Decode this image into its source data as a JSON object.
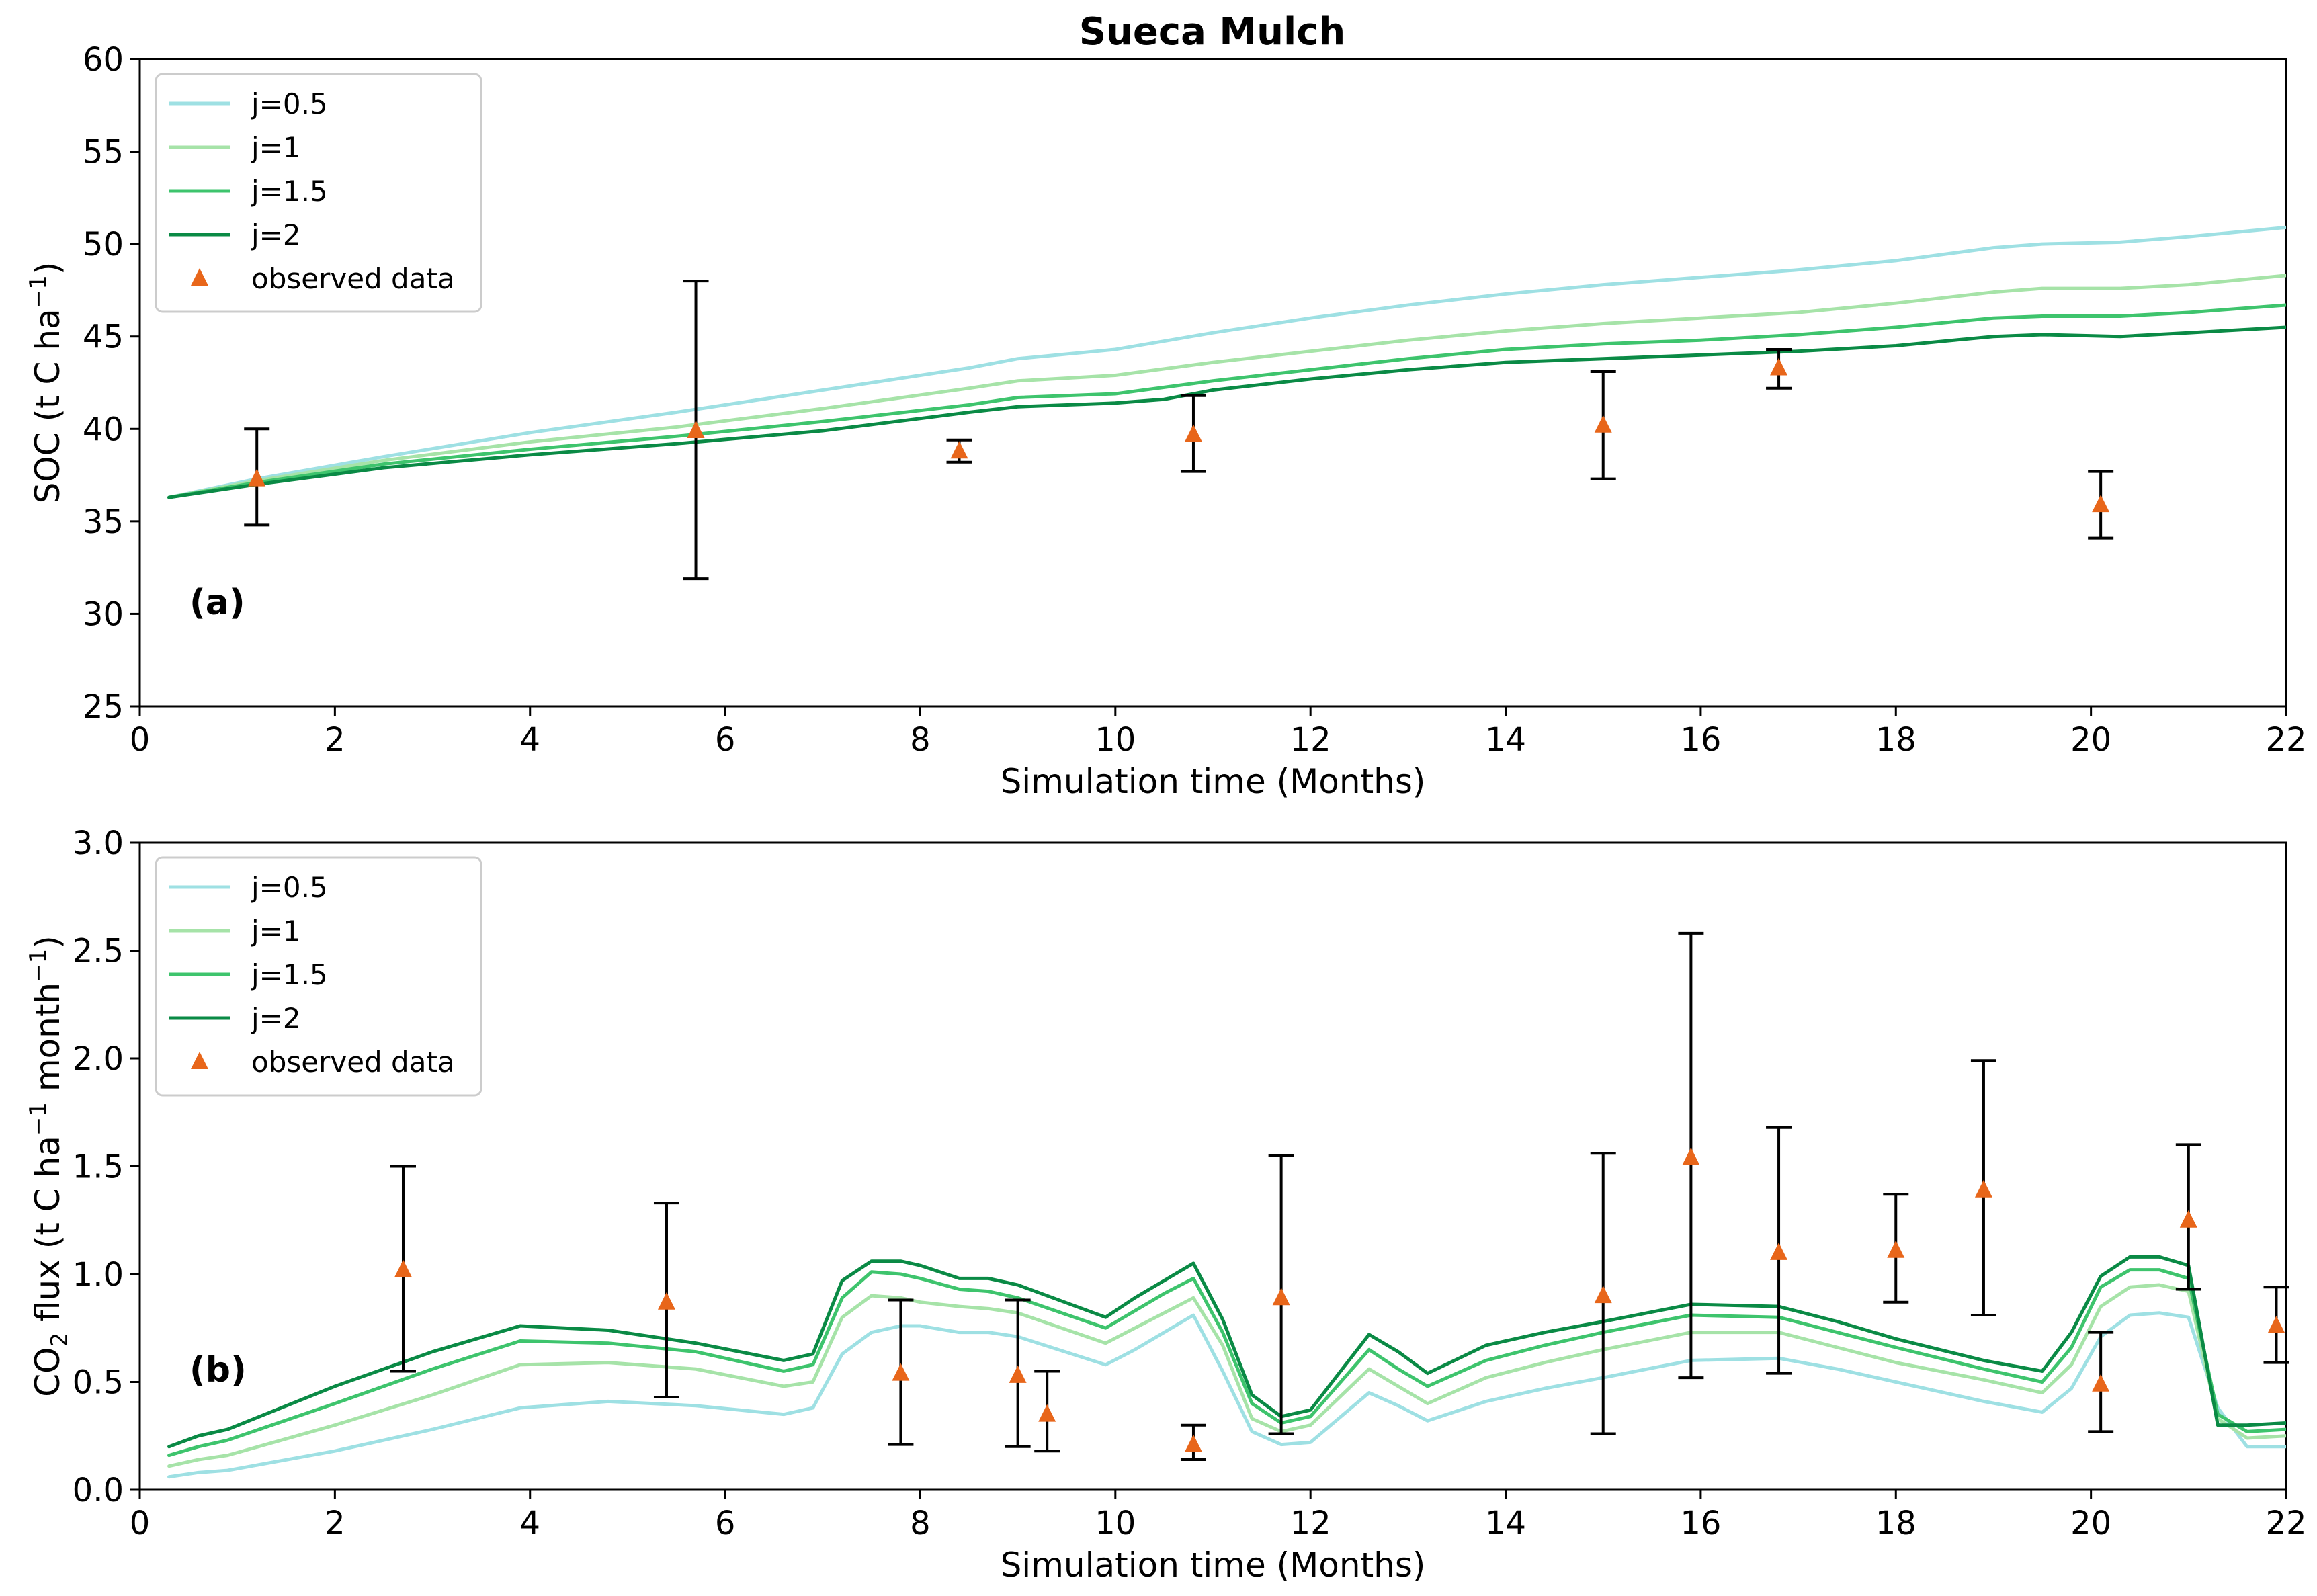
{
  "figure": {
    "title": "Sueca Mulch"
  },
  "chart_data": [
    {
      "type": "line",
      "panel_label": "(a)",
      "xlabel": "Simulation time (Months)",
      "ylabel": "SOC (t C ha",
      "ylabel_sup": "−1",
      "ylabel_end": ")",
      "xlim": [
        0,
        22
      ],
      "ylim": [
        25,
        60
      ],
      "xticks": [
        0,
        2,
        4,
        6,
        8,
        10,
        12,
        14,
        16,
        18,
        20,
        22
      ],
      "yticks": [
        25,
        30,
        35,
        40,
        45,
        50,
        55,
        60
      ],
      "legend_position": "top-left",
      "series": [
        {
          "name": "j=0.5",
          "color": "#9ee0e3",
          "x": [
            0.3,
            1.2,
            2.5,
            4,
            5.5,
            7,
            8.5,
            9,
            10,
            11,
            12,
            13,
            14,
            15,
            16,
            17,
            18,
            19,
            19.5,
            20.3,
            21,
            22
          ],
          "y": [
            36.3,
            37.3,
            38.5,
            39.8,
            40.9,
            42.1,
            43.3,
            43.8,
            44.3,
            45.2,
            46.0,
            46.7,
            47.3,
            47.8,
            48.2,
            48.6,
            49.1,
            49.8,
            50.0,
            50.1,
            50.4,
            50.9
          ]
        },
        {
          "name": "j=1",
          "color": "#a6e3a8",
          "x": [
            0.3,
            1.2,
            2.5,
            4,
            5.5,
            7,
            8.5,
            9,
            10,
            11,
            12,
            13,
            14,
            15,
            16,
            17,
            18,
            19,
            19.5,
            20.3,
            21,
            22
          ],
          "y": [
            36.3,
            37.2,
            38.3,
            39.3,
            40.1,
            41.1,
            42.2,
            42.6,
            42.9,
            43.6,
            44.2,
            44.8,
            45.3,
            45.7,
            46.0,
            46.3,
            46.8,
            47.4,
            47.6,
            47.6,
            47.8,
            48.3
          ]
        },
        {
          "name": "j=1.5",
          "color": "#3ec46d",
          "x": [
            0.3,
            1.2,
            2.5,
            4,
            5.5,
            7,
            8.5,
            9,
            10,
            11,
            12,
            13,
            14,
            15,
            16,
            17,
            18,
            19,
            19.5,
            20.3,
            21,
            22
          ],
          "y": [
            36.3,
            37.1,
            38.1,
            38.9,
            39.6,
            40.4,
            41.3,
            41.7,
            41.9,
            42.6,
            43.2,
            43.8,
            44.3,
            44.6,
            44.8,
            45.1,
            45.5,
            46.0,
            46.1,
            46.1,
            46.3,
            46.7
          ]
        },
        {
          "name": "j=2",
          "color": "#0a8a45",
          "x": [
            0.3,
            1.2,
            2.5,
            4,
            5.5,
            7,
            8.5,
            9,
            10,
            10.5,
            11,
            12,
            13,
            14,
            15,
            16,
            17,
            18,
            19,
            19.5,
            20.3,
            21,
            22
          ],
          "y": [
            36.3,
            37.0,
            37.9,
            38.6,
            39.2,
            39.9,
            40.9,
            41.2,
            41.4,
            41.6,
            42.1,
            42.7,
            43.2,
            43.6,
            43.8,
            44.0,
            44.2,
            44.5,
            45.0,
            45.1,
            45.0,
            45.2,
            45.5
          ]
        }
      ],
      "observed": {
        "name": "observed data",
        "color": "#e8661a",
        "x": [
          1.2,
          5.7,
          8.4,
          10.8,
          15.0,
          16.8,
          20.1
        ],
        "y": [
          37.3,
          39.9,
          38.8,
          39.7,
          40.2,
          43.3,
          35.9
        ],
        "err_low": [
          34.8,
          31.9,
          38.2,
          37.7,
          37.3,
          42.2,
          34.1
        ],
        "err_high": [
          40.0,
          48.0,
          39.4,
          41.8,
          43.1,
          44.3,
          37.7
        ]
      }
    },
    {
      "type": "line",
      "panel_label": "(b)",
      "xlabel": "Simulation time (Months)",
      "ylabel_pre": "CO",
      "ylabel_sub": "2",
      "ylabel": " flux (t C ha",
      "ylabel_sup": "−1",
      "ylabel_end": " month",
      "ylabel_sup2": "−1",
      "ylabel_end2": ")",
      "xlim": [
        0,
        22
      ],
      "ylim": [
        0,
        3.0
      ],
      "xticks": [
        0,
        2,
        4,
        6,
        8,
        10,
        12,
        14,
        16,
        18,
        20,
        22
      ],
      "yticks": [
        "0.0",
        "0.5",
        "1.0",
        "1.5",
        "2.0",
        "2.5",
        "3.0"
      ],
      "legend_position": "top-left",
      "x": [
        0.3,
        0.6,
        0.9,
        2.0,
        3.0,
        3.9,
        4.8,
        5.7,
        6.6,
        6.9,
        7.2,
        7.5,
        7.8,
        8.0,
        8.4,
        8.7,
        9.0,
        9.9,
        10.2,
        10.5,
        10.8,
        11.1,
        11.4,
        11.7,
        12.0,
        12.6,
        12.9,
        13.2,
        13.8,
        14.4,
        15.0,
        15.9,
        16.8,
        17.4,
        18.0,
        18.9,
        19.5,
        19.8,
        20.1,
        20.4,
        20.7,
        21.0,
        21.3,
        21.6,
        22.0
      ],
      "series": [
        {
          "name": "j=0.5",
          "color": "#9ee0e3",
          "y": [
            0.06,
            0.08,
            0.09,
            0.18,
            0.28,
            0.38,
            0.41,
            0.39,
            0.35,
            0.38,
            0.63,
            0.73,
            0.76,
            0.76,
            0.73,
            0.73,
            0.71,
            0.58,
            0.65,
            0.73,
            0.81,
            0.55,
            0.27,
            0.21,
            0.22,
            0.45,
            0.39,
            0.32,
            0.41,
            0.47,
            0.52,
            0.6,
            0.61,
            0.56,
            0.5,
            0.41,
            0.36,
            0.47,
            0.71,
            0.81,
            0.82,
            0.8,
            0.38,
            0.2,
            0.2
          ]
        },
        {
          "name": "j=1",
          "color": "#a6e3a8",
          "y": [
            0.11,
            0.14,
            0.16,
            0.3,
            0.44,
            0.58,
            0.59,
            0.56,
            0.48,
            0.5,
            0.8,
            0.9,
            0.89,
            0.87,
            0.85,
            0.84,
            0.82,
            0.68,
            0.75,
            0.82,
            0.89,
            0.67,
            0.33,
            0.27,
            0.3,
            0.56,
            0.48,
            0.4,
            0.52,
            0.59,
            0.65,
            0.73,
            0.73,
            0.66,
            0.59,
            0.51,
            0.45,
            0.58,
            0.85,
            0.94,
            0.95,
            0.92,
            0.33,
            0.24,
            0.25
          ]
        },
        {
          "name": "j=1.5",
          "color": "#3ec46d",
          "y": [
            0.16,
            0.2,
            0.23,
            0.4,
            0.56,
            0.69,
            0.68,
            0.64,
            0.55,
            0.58,
            0.89,
            1.01,
            1.0,
            0.98,
            0.93,
            0.92,
            0.89,
            0.75,
            0.83,
            0.91,
            0.98,
            0.73,
            0.4,
            0.31,
            0.34,
            0.65,
            0.56,
            0.48,
            0.6,
            0.67,
            0.73,
            0.81,
            0.8,
            0.73,
            0.66,
            0.56,
            0.5,
            0.66,
            0.94,
            1.02,
            1.02,
            0.98,
            0.35,
            0.27,
            0.28
          ]
        },
        {
          "name": "j=2",
          "color": "#0a8a45",
          "y": [
            0.2,
            0.25,
            0.28,
            0.48,
            0.64,
            0.76,
            0.74,
            0.68,
            0.6,
            0.63,
            0.97,
            1.06,
            1.06,
            1.04,
            0.98,
            0.98,
            0.95,
            0.8,
            0.89,
            0.97,
            1.05,
            0.79,
            0.44,
            0.34,
            0.37,
            0.72,
            0.64,
            0.54,
            0.67,
            0.73,
            0.78,
            0.86,
            0.85,
            0.78,
            0.7,
            0.6,
            0.55,
            0.73,
            0.99,
            1.08,
            1.08,
            1.04,
            0.3,
            0.3,
            0.31
          ]
        }
      ],
      "observed": {
        "name": "observed data",
        "color": "#e8661a",
        "x": [
          2.7,
          5.4,
          7.8,
          9.0,
          9.3,
          10.8,
          11.7,
          15.0,
          15.9,
          16.8,
          18.0,
          18.9,
          20.1,
          21.0,
          21.9
        ],
        "y": [
          1.02,
          0.87,
          0.54,
          0.53,
          0.35,
          0.21,
          0.89,
          0.9,
          1.54,
          1.1,
          1.11,
          1.39,
          0.49,
          1.25,
          0.76
        ],
        "err_low": [
          0.55,
          0.43,
          0.21,
          0.2,
          0.18,
          0.14,
          0.26,
          0.26,
          0.52,
          0.54,
          0.87,
          0.81,
          0.27,
          0.93,
          0.59
        ],
        "err_high": [
          1.5,
          1.33,
          0.88,
          0.88,
          0.55,
          0.3,
          1.55,
          1.56,
          2.58,
          1.68,
          1.37,
          1.99,
          0.73,
          1.6,
          0.94
        ]
      }
    }
  ]
}
